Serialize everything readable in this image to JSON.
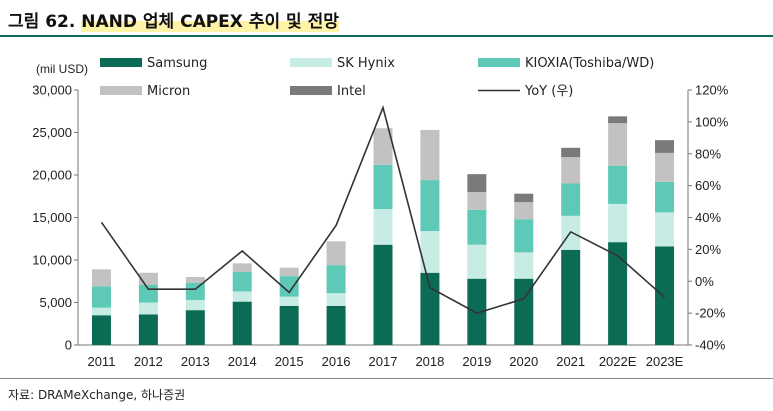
{
  "title": {
    "prefix": "그림 62.",
    "main": "NAND 업체 CAPEX 추이 및 전망"
  },
  "source": "자료: DRAMeXchange, 하나증권",
  "chart_data": {
    "type": "bar",
    "stacked": true,
    "unit_label": "(mil USD)",
    "categories": [
      "2011",
      "2012",
      "2013",
      "2014",
      "2015",
      "2016",
      "2017",
      "2018",
      "2019",
      "2020",
      "2021",
      "2022E",
      "2023E"
    ],
    "series": [
      {
        "name": "Samsung",
        "color": "#0b6b55",
        "values": [
          3500,
          3600,
          4100,
          5100,
          4600,
          4600,
          11800,
          8500,
          7800,
          7800,
          11200,
          12100,
          11600
        ]
      },
      {
        "name": "SK Hynix",
        "color": "#c7ece4",
        "values": [
          900,
          1400,
          1200,
          1200,
          1100,
          1500,
          4200,
          4900,
          4000,
          3100,
          4000,
          4500,
          4000
        ]
      },
      {
        "name": "KIOXIA(Toshiba/WD)",
        "color": "#5ec9b6",
        "values": [
          2500,
          2100,
          2000,
          2300,
          2400,
          3300,
          5200,
          6000,
          4100,
          3900,
          3800,
          4500,
          3600
        ]
      },
      {
        "name": "Micron",
        "color": "#c2c2c2",
        "values": [
          2000,
          1400,
          700,
          1000,
          1000,
          2800,
          4300,
          5900,
          2100,
          2000,
          3100,
          5000,
          3400
        ]
      },
      {
        "name": "Intel",
        "color": "#7a7a7a",
        "values": [
          0,
          0,
          0,
          0,
          0,
          0,
          0,
          0,
          2100,
          1000,
          1100,
          800,
          1500
        ]
      }
    ],
    "line_series": {
      "name": "YoY (우)",
      "color": "#333333",
      "values": [
        37,
        -5,
        -5,
        19,
        -7,
        35,
        109,
        -4,
        -20,
        -11,
        31,
        16,
        -10
      ]
    },
    "y_left": {
      "min": 0,
      "max": 30000,
      "ticks": [
        "0",
        "5,000",
        "10,000",
        "15,000",
        "20,000",
        "25,000",
        "30,000"
      ]
    },
    "y_right": {
      "min": -40,
      "max": 120,
      "ticks": [
        "-40%",
        "-20%",
        "0%",
        "20%",
        "40%",
        "60%",
        "80%",
        "100%",
        "120%"
      ]
    },
    "grid": false,
    "legend": "top"
  }
}
